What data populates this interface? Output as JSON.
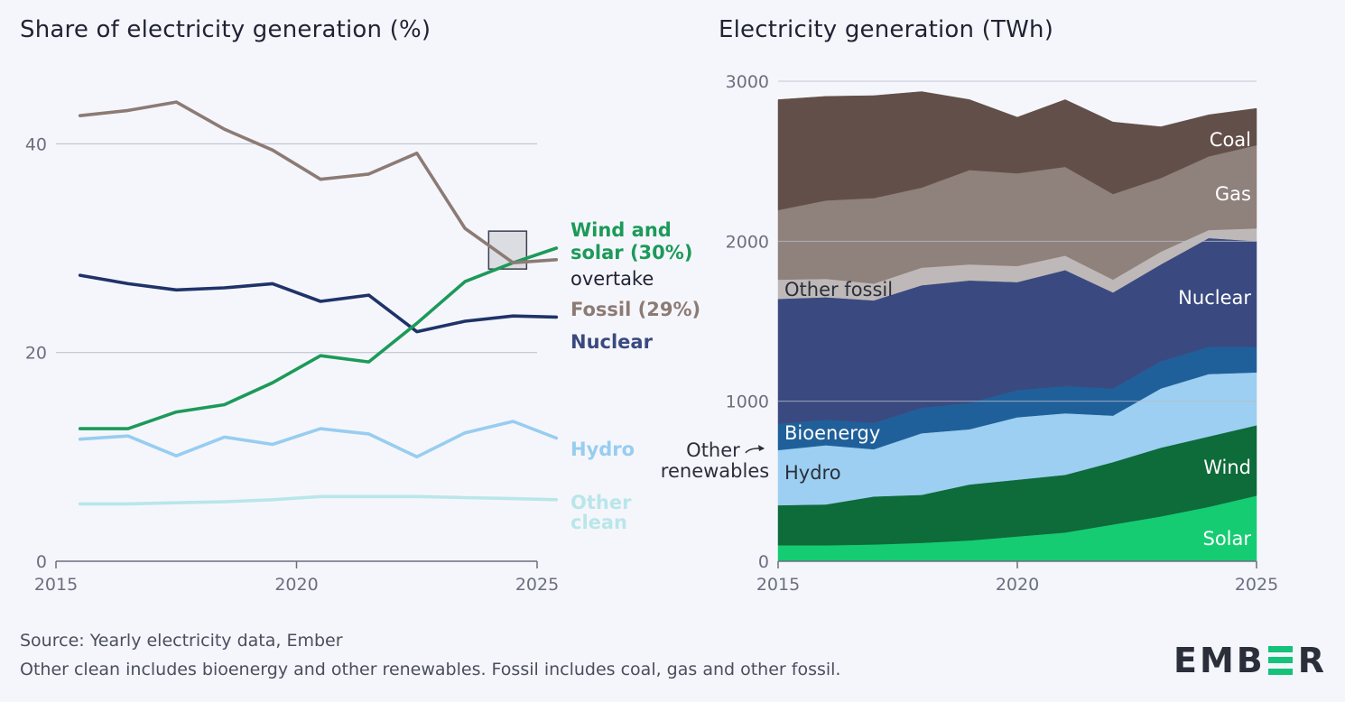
{
  "left_title": "Share of electricity generation (%)",
  "right_title": "Electricity generation (TWh)",
  "footer": {
    "source": "Source: Yearly electricity data, Ember",
    "note": "Other clean includes bioenergy and other renewables. Fossil includes coal, gas and other fossil."
  },
  "logo": {
    "prefix": "EMB",
    "suffix": "R",
    "mark_name": "E"
  },
  "colors": {
    "fossil": "#8c7b75",
    "wind_solar": "#1c9a5a",
    "nuclear": "#1f3369",
    "hydro": "#97cdf0",
    "other_clean": "#b9e6ea",
    "coal": "#634f4a",
    "gas": "#8f817c",
    "other_fossil": "#beb9b8",
    "nuclear_area": "#3a4a80",
    "bioenergy": "#20609a",
    "hydro_area": "#9ccff1",
    "wind": "#0e6b3a",
    "solar": "#15cc72"
  },
  "chart_data": [
    {
      "type": "line",
      "title": "Share of electricity generation (%)",
      "x": [
        2015.5,
        2016.5,
        2017.5,
        2018.5,
        2019.5,
        2020.5,
        2021.5,
        2022.5,
        2023.5,
        2024.5,
        2025.4
      ],
      "x_ticks": [
        "2015",
        "2020",
        "2025"
      ],
      "y_ticks": [
        "0",
        "20",
        "40"
      ],
      "xlim": [
        2015,
        2025.6
      ],
      "ylim": [
        0,
        46
      ],
      "series": [
        {
          "key": "fossil",
          "name": "Fossil (29%)",
          "values": [
            42.7,
            43.2,
            44.0,
            41.4,
            39.4,
            36.6,
            37.1,
            39.1,
            31.9,
            28.6,
            28.9
          ]
        },
        {
          "key": "wind_solar",
          "name": "Wind and solar (30%)",
          "values": [
            12.7,
            12.7,
            14.3,
            15.0,
            17.1,
            19.7,
            19.1,
            22.8,
            26.8,
            28.6,
            30.0
          ]
        },
        {
          "key": "nuclear",
          "name": "Nuclear",
          "values": [
            27.4,
            26.6,
            26.0,
            26.2,
            26.6,
            24.9,
            25.5,
            22.0,
            23.0,
            23.5,
            23.4
          ]
        },
        {
          "key": "hydro",
          "name": "Hydro",
          "values": [
            11.7,
            12.0,
            10.1,
            11.9,
            11.2,
            12.7,
            12.2,
            10.0,
            12.3,
            13.4,
            11.8
          ]
        },
        {
          "key": "other_clean",
          "name": "Other clean",
          "values": [
            5.5,
            5.5,
            5.6,
            5.7,
            5.9,
            6.2,
            6.2,
            6.2,
            6.1,
            6.0,
            5.9
          ]
        }
      ],
      "labels": {
        "wind_solar_line1": "Wind and",
        "wind_solar_line2": "solar (30%)",
        "overtake": "overtake",
        "fossil": "Fossil (29%)",
        "nuclear": "Nuclear",
        "hydro": "Hydro",
        "other_clean_line1": "Other",
        "other_clean_line2": "clean"
      }
    },
    {
      "type": "area",
      "title": "Electricity generation (TWh)",
      "x": [
        2015,
        2016,
        2017,
        2018,
        2019,
        2020,
        2021,
        2022,
        2023,
        2024,
        2025
      ],
      "x_ticks": [
        "2015",
        "2020",
        "2025"
      ],
      "y_ticks": [
        "0",
        "1000",
        "2000",
        "3000"
      ],
      "xlim": [
        2015,
        2025
      ],
      "ylim": [
        0,
        3000
      ],
      "series": [
        {
          "key": "solar",
          "name": "Solar",
          "values": [
            100,
            100,
            105,
            115,
            130,
            155,
            180,
            230,
            280,
            340,
            410
          ]
        },
        {
          "key": "wind",
          "name": "Wind",
          "values": [
            250,
            255,
            300,
            300,
            350,
            355,
            360,
            390,
            430,
            440,
            440
          ]
        },
        {
          "key": "hydro_area",
          "name": "Hydro",
          "values": [
            345,
            370,
            295,
            385,
            345,
            390,
            385,
            290,
            370,
            390,
            330
          ]
        },
        {
          "key": "bioenergy",
          "name": "Bioenergy",
          "values": [
            165,
            160,
            165,
            160,
            165,
            170,
            170,
            170,
            170,
            170,
            160
          ]
        },
        {
          "key": "nuclear_area",
          "name": "Nuclear",
          "values": [
            780,
            765,
            765,
            765,
            765,
            675,
            725,
            600,
            605,
            680,
            660
          ]
        },
        {
          "key": "other_fossil",
          "name": "Other fossil",
          "values": [
            120,
            115,
            105,
            110,
            100,
            100,
            90,
            80,
            80,
            50,
            80
          ]
        },
        {
          "key": "gas",
          "name": "Gas",
          "values": [
            435,
            490,
            535,
            500,
            590,
            580,
            555,
            535,
            460,
            460,
            520
          ]
        },
        {
          "key": "coal",
          "name": "Coal",
          "values": [
            690,
            650,
            640,
            600,
            440,
            350,
            420,
            450,
            320,
            260,
            230
          ]
        }
      ],
      "labels": {
        "coal": "Coal",
        "gas": "Gas",
        "nuclear": "Nuclear",
        "other_fossil": "Other fossil",
        "bioenergy": "Bioenergy",
        "hydro": "Hydro",
        "wind": "Wind",
        "solar": "Solar",
        "other_renewables_line1": "Other",
        "other_renewables_line2": "renewables"
      }
    }
  ]
}
